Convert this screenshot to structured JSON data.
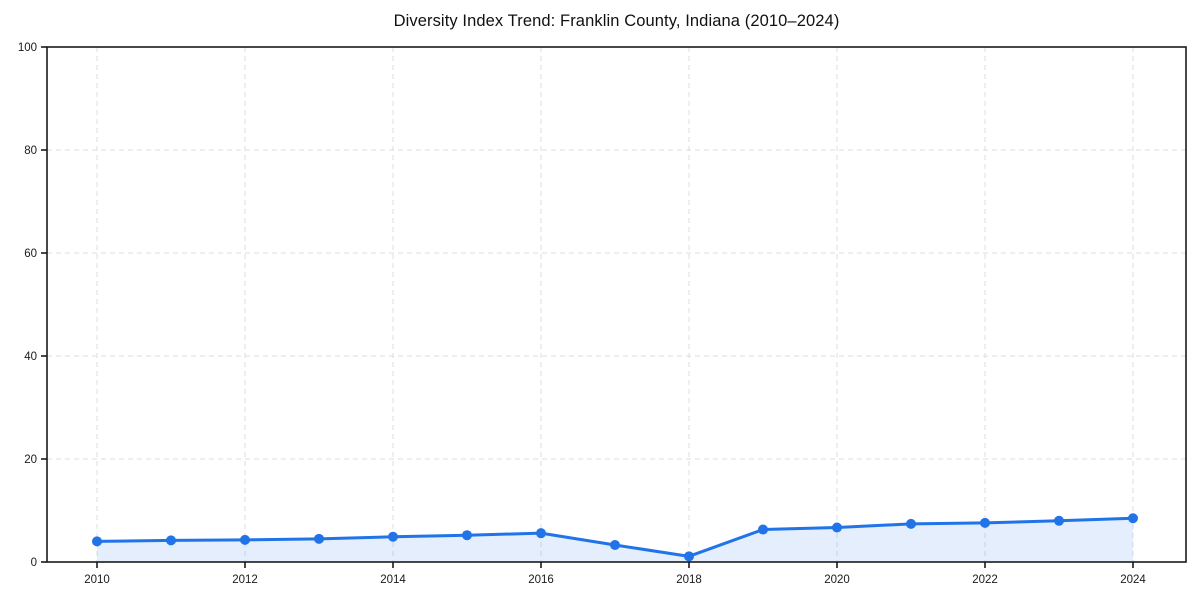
{
  "chart_data": {
    "type": "line",
    "title": "Diversity Index Trend: Franklin County, Indiana (2010–2024)",
    "series": [
      {
        "name": "Diversity Index",
        "x": [
          2010,
          2011,
          2012,
          2013,
          2014,
          2015,
          2016,
          2017,
          2018,
          2019,
          2020,
          2021,
          2022,
          2023,
          2024
        ],
        "values": [
          4.0,
          4.2,
          4.3,
          4.5,
          4.9,
          5.2,
          5.6,
          3.3,
          1.1,
          6.3,
          6.7,
          7.4,
          7.6,
          8.0,
          8.5
        ]
      }
    ],
    "xlabel": "",
    "ylabel": "",
    "ylim": [
      0,
      100
    ],
    "xlim": [
      2010,
      2024
    ],
    "y_ticks": [
      0,
      20,
      40,
      60,
      80,
      100
    ],
    "y_tick_labels": [
      "0",
      "20",
      "40",
      "60",
      "80",
      "100"
    ],
    "x_ticks": [
      2010,
      2012,
      2014,
      2016,
      2018,
      2020,
      2022,
      2024
    ],
    "x_tick_labels": [
      "2010",
      "2012",
      "2014",
      "2016",
      "2018",
      "2020",
      "2022",
      "2024"
    ],
    "grid": "dashed",
    "legend": "none",
    "area_fill": true,
    "marker": "circle",
    "colors": {
      "line": "#2173e8",
      "marker": "#2173e8",
      "area_fill": "rgba(33, 115, 232, 0.12)",
      "grid": "#dddddd",
      "axis": "#1a1a1a",
      "tick_text": "#1a1a1a",
      "title_text": "#111111",
      "background": "#ffffff"
    }
  }
}
